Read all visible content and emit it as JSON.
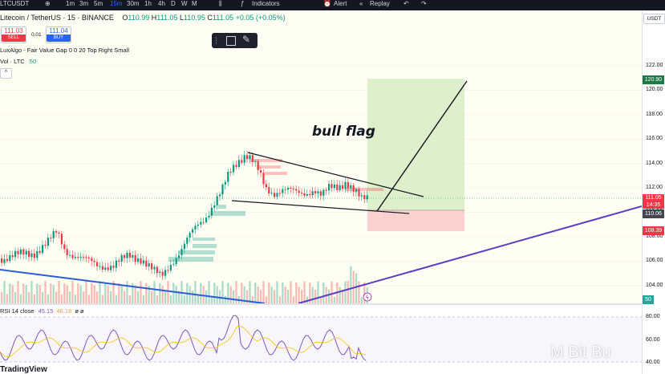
{
  "toolbar": {
    "symbol": "LTCUSDT",
    "intervals": [
      "1m",
      "3m",
      "5m",
      "15m",
      "30m",
      "1h",
      "4h",
      "D",
      "W",
      "M"
    ],
    "active_interval": "15m",
    "indicators_label": "Indicators",
    "alert_label": "Alert",
    "replay_label": "Replay"
  },
  "legend": {
    "title": "Litecoin / TetherUS · 15 · BINANCE",
    "ohlc": {
      "O": "110.99",
      "H": "111.05",
      "L": "110.95",
      "C": "111.05"
    },
    "change": "+0.05 (+0.05%)",
    "sell_price": "111.03",
    "sell_label": "SELL",
    "spread": "0.01",
    "buy_price": "111.04",
    "buy_label": "BUY",
    "indicator1": "LuxAlgo - Fair Value Gap  0  0  20  Top Right  Small",
    "indicator2_name": "Vol · LTC",
    "indicator2_value": "50",
    "collapse_label": "^"
  },
  "price_axis": {
    "currency": "USDT",
    "ticks": [
      "122.00",
      "120.00",
      "118.00",
      "116.00",
      "114.00",
      "112.00",
      "110.00",
      "108.00",
      "106.00",
      "104.00"
    ],
    "target_tag": "120.90",
    "current_price": "111.05",
    "countdown": "14:35",
    "entry_tag": "110.06",
    "stop_tag": "108.39",
    "volume_tag": "50"
  },
  "annotation": "bull flag",
  "rsi": {
    "label": "RSI 14 close",
    "value1": "45.15",
    "value2": "46.18",
    "extra": "ø  ø",
    "ticks": [
      "80.00",
      "60.00",
      "40.00"
    ]
  },
  "branding": {
    "logo": "TradingView",
    "watermark": "M Bit Bu"
  },
  "colors": {
    "up": "#089981",
    "down": "#f23645",
    "target_zone": "#d7ecc4",
    "stop_zone": "#f9c9c9",
    "trendline_purple": "#5b3cc4",
    "trendline_blue": "#2b5cd6"
  }
}
